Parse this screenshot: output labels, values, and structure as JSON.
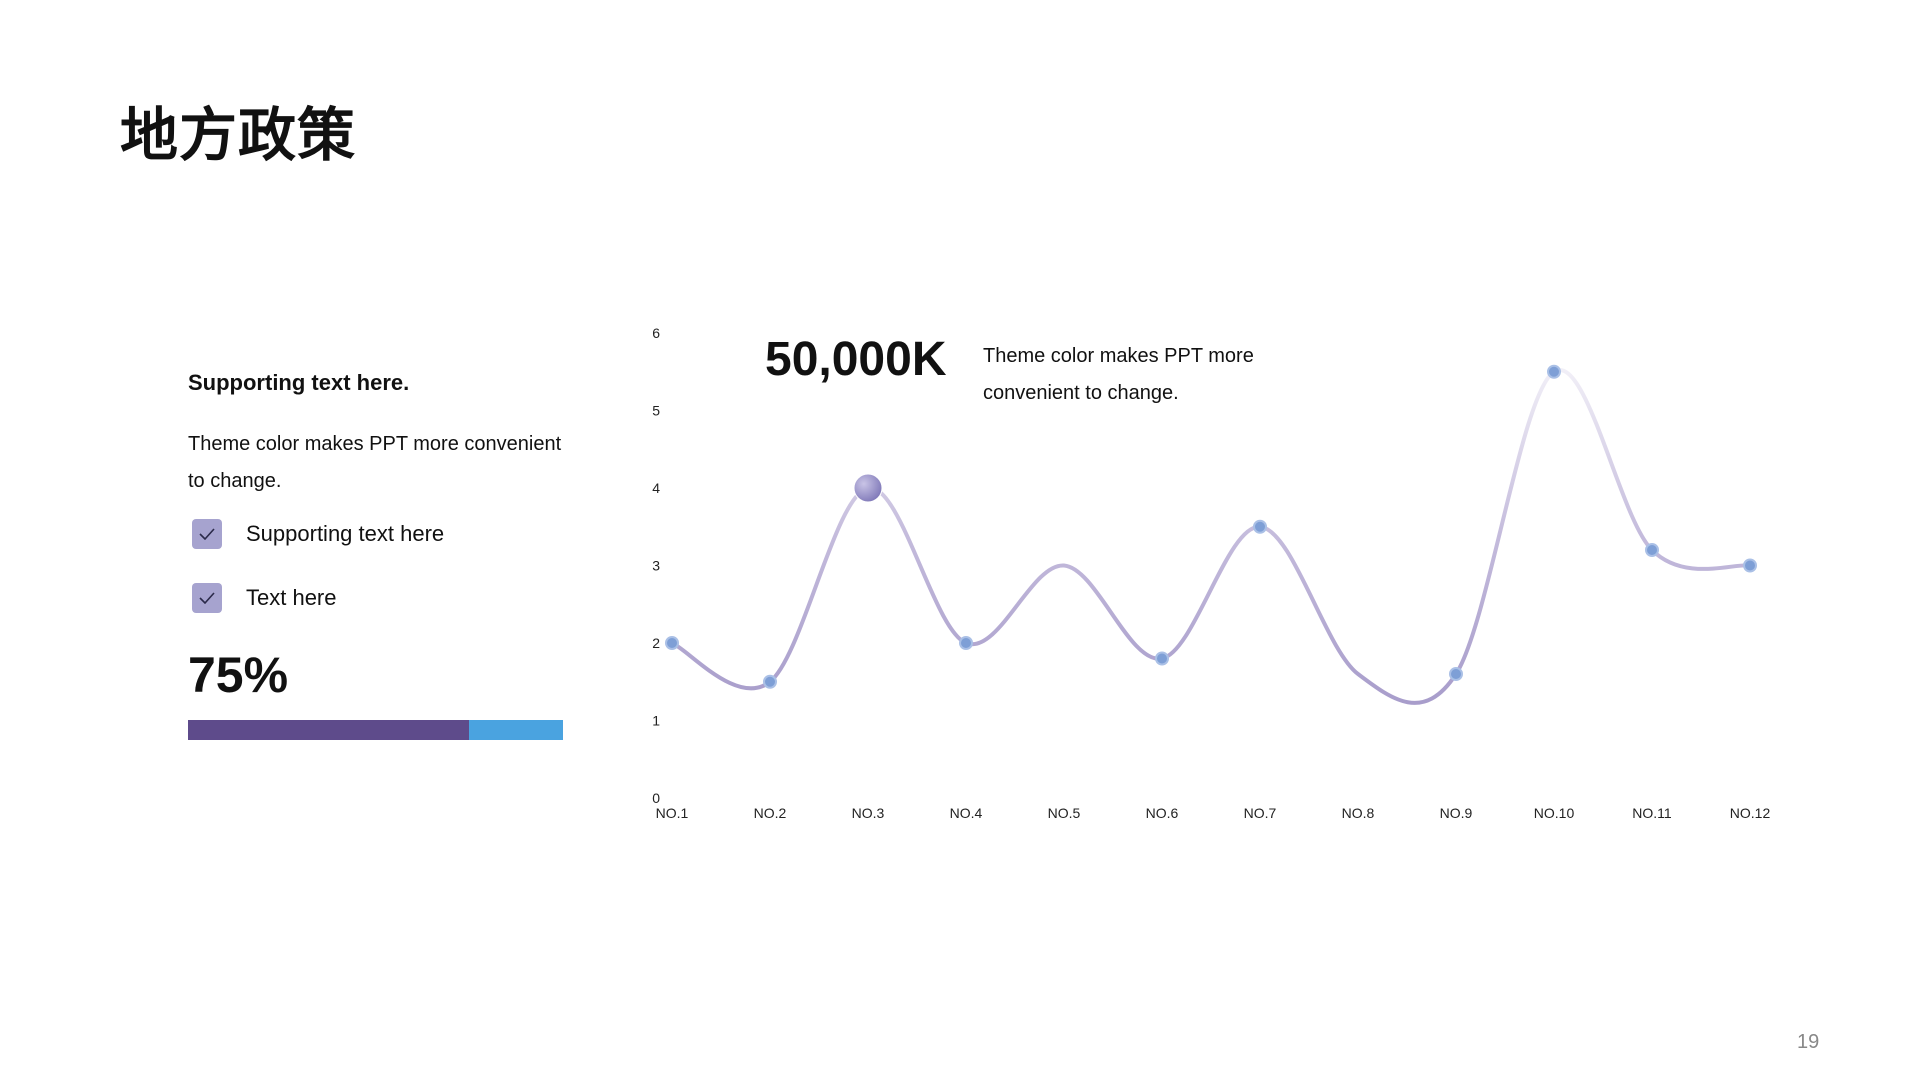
{
  "slide": {
    "title": "地方政策",
    "page_number": "19"
  },
  "left_panel": {
    "heading": "Supporting text here.",
    "body": "Theme color makes PPT more convenient to change.",
    "checklist": [
      {
        "label": "Supporting text here",
        "icon": "check-icon"
      },
      {
        "label": "Text here",
        "icon": "check-icon"
      }
    ],
    "percent_label": "75%",
    "progress": 0.75,
    "colors": {
      "progress_fill": "#5e4b8b",
      "progress_track": "#4aa3e0",
      "checkbox": "#a6a3cf"
    }
  },
  "stat": {
    "value": "50,000K",
    "description": "Theme color makes PPT more convenient to change."
  },
  "chart_data": {
    "type": "line",
    "categories": [
      "NO.1",
      "NO.2",
      "NO.3",
      "NO.4",
      "NO.5",
      "NO.6",
      "NO.7",
      "NO.8",
      "NO.9",
      "NO.10",
      "NO.11",
      "NO.12"
    ],
    "series": [
      {
        "values": [
          2,
          1.5,
          4,
          2,
          3,
          1.8,
          3.5,
          1.6,
          1.6,
          5.5,
          3.2,
          3
        ]
      }
    ],
    "yticks": [
      "0",
      "1",
      "2",
      "3",
      "4",
      "5",
      "6"
    ],
    "ylim": [
      0,
      6
    ],
    "grid": false,
    "highlight_index": 2,
    "markers_shown": [
      0,
      1,
      2,
      3,
      5,
      6,
      8,
      9,
      10,
      11
    ],
    "colors": {
      "line": "#b4a9d2",
      "marker": "#7e9fd6",
      "highlight": "#9b94c8"
    }
  }
}
